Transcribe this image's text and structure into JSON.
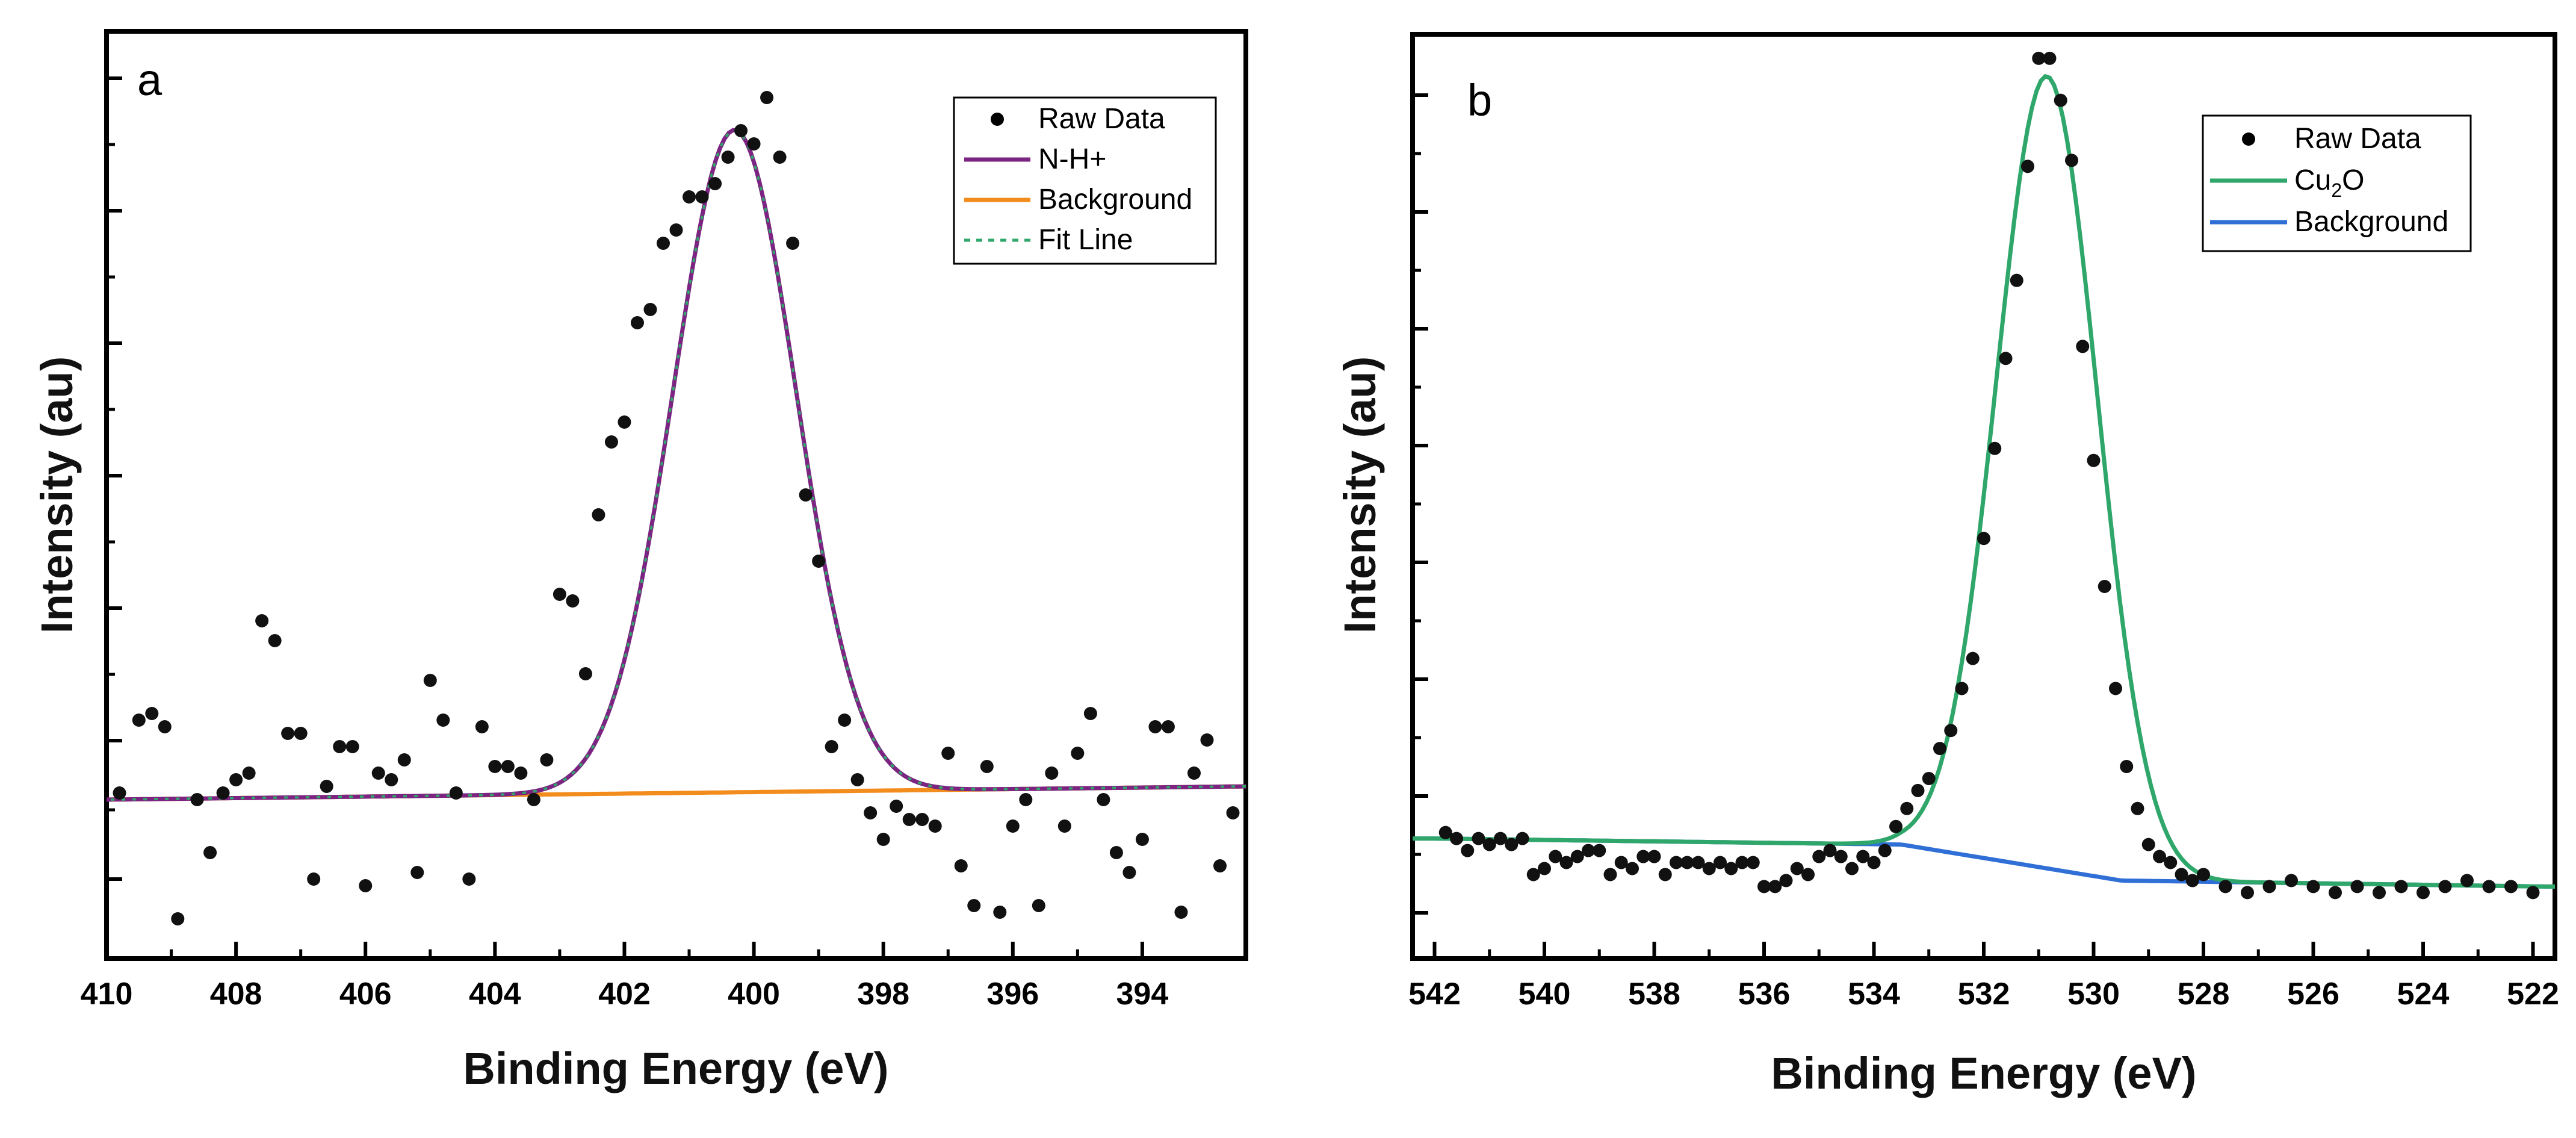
{
  "chart_data": [
    {
      "type": "scatter",
      "panel": "a",
      "xlabel": "Binding Energy (eV)",
      "ylabel": "Intensity (au)",
      "xlim": [
        410,
        392.4
      ],
      "ylim": [
        0,
        1.4
      ],
      "xticks": [
        410,
        408,
        406,
        404,
        402,
        400,
        398,
        396,
        394
      ],
      "x_reversed": true,
      "y_tick_labels": false,
      "legend_position": "top-right",
      "legend": [
        {
          "label": "Raw Data",
          "style": "marker",
          "color": "#000000"
        },
        {
          "label": "N-H+",
          "style": "line",
          "color": "#7b2481"
        },
        {
          "label": "Background",
          "style": "line",
          "color": "#f28c1c"
        },
        {
          "label": "Fit Line",
          "style": "dashed",
          "color": "#2fa66a"
        }
      ],
      "background": {
        "x": [
          410,
          392.4
        ],
        "y": [
          0.24,
          0.26
        ]
      },
      "peak": {
        "center": 400.3,
        "height": 1.0,
        "sigma": 0.95
      },
      "raw_points": {
        "x": [
          409.8,
          409.5,
          409.3,
          409.1,
          408.9,
          408.6,
          408.4,
          408.2,
          408.0,
          407.8,
          407.6,
          407.4,
          407.2,
          407.0,
          406.8,
          406.6,
          406.4,
          406.2,
          406.0,
          405.8,
          405.6,
          405.4,
          405.2,
          405.0,
          404.8,
          404.6,
          404.4,
          404.2,
          404.0,
          403.8,
          403.6,
          403.4,
          403.2,
          403.0,
          402.8,
          402.6,
          402.4,
          402.2,
          402.0,
          401.8,
          401.6,
          401.4,
          401.2,
          401.0,
          400.8,
          400.6,
          400.4,
          400.2,
          400.0,
          399.8,
          399.6,
          399.4,
          399.2,
          399.0,
          398.8,
          398.6,
          398.4,
          398.2,
          398.0,
          397.8,
          397.6,
          397.4,
          397.2,
          397.0,
          396.8,
          396.6,
          396.4,
          396.2,
          396.0,
          395.8,
          395.6,
          395.4,
          395.2,
          395.0,
          394.8,
          394.6,
          394.4,
          394.2,
          394.0,
          393.8,
          393.6,
          393.4,
          393.2,
          393.0,
          392.8,
          392.6
        ],
        "y": [
          0.25,
          0.36,
          0.37,
          0.35,
          0.06,
          0.24,
          0.16,
          0.25,
          0.27,
          0.28,
          0.51,
          0.48,
          0.34,
          0.34,
          0.12,
          0.26,
          0.32,
          0.32,
          0.11,
          0.28,
          0.27,
          0.3,
          0.13,
          0.42,
          0.36,
          0.25,
          0.12,
          0.35,
          0.29,
          0.29,
          0.28,
          0.24,
          0.3,
          0.55,
          0.54,
          0.43,
          0.67,
          0.78,
          0.81,
          0.96,
          0.98,
          1.08,
          1.1,
          1.15,
          1.15,
          1.17,
          1.21,
          1.25,
          1.23,
          1.3,
          1.21,
          1.08,
          0.7,
          0.6,
          0.32,
          0.36,
          0.27,
          0.22,
          0.18,
          0.23,
          0.21,
          0.21,
          0.2,
          0.31,
          0.14,
          0.08,
          0.29,
          0.07,
          0.2,
          0.24,
          0.08,
          0.28,
          0.2,
          0.31,
          0.37,
          0.24,
          0.16,
          0.13,
          0.18,
          0.35,
          0.35,
          0.07,
          0.28,
          0.33,
          0.14,
          0.22
        ]
      }
    },
    {
      "type": "scatter",
      "panel": "b",
      "xlabel": "Binding Energy (eV)",
      "ylabel": "Intensity (au)",
      "xlim": [
        542.4,
        521.6
      ],
      "ylim": [
        0,
        1.54
      ],
      "xticks": [
        542,
        540,
        538,
        536,
        534,
        532,
        530,
        528,
        526,
        524,
        522
      ],
      "x_reversed": true,
      "y_tick_labels": false,
      "legend_position": "top-right",
      "legend": [
        {
          "label": "Raw Data",
          "style": "marker",
          "color": "#000000"
        },
        {
          "label": "Cu",
          "subscript": "2",
          "suffix": "O",
          "style": "line",
          "color": "#2fa66a"
        },
        {
          "label": "Background",
          "style": "line",
          "color": "#2f6fd6"
        }
      ],
      "background": {
        "x": [
          542,
          533.5,
          529.5,
          521.8
        ],
        "y": [
          0.2,
          0.19,
          0.13,
          0.12
        ]
      },
      "peak": {
        "center": 530.85,
        "height": 1.32,
        "sigma": 0.92
      },
      "raw_points": {
        "x": [
          541.8,
          541.6,
          541.4,
          541.2,
          541.0,
          540.8,
          540.6,
          540.4,
          540.2,
          540.0,
          539.8,
          539.6,
          539.4,
          539.2,
          539.0,
          538.8,
          538.6,
          538.4,
          538.2,
          538.0,
          537.8,
          537.6,
          537.4,
          537.2,
          537.0,
          536.8,
          536.6,
          536.4,
          536.2,
          536.0,
          535.8,
          535.6,
          535.4,
          535.2,
          535.0,
          534.8,
          534.6,
          534.4,
          534.2,
          534.0,
          533.8,
          533.6,
          533.4,
          533.2,
          533.0,
          532.8,
          532.6,
          532.4,
          532.2,
          532.0,
          531.8,
          531.6,
          531.4,
          531.2,
          531.0,
          530.8,
          530.6,
          530.4,
          530.2,
          530.0,
          529.8,
          529.6,
          529.4,
          529.2,
          529.0,
          528.8,
          528.6,
          528.4,
          528.2,
          528.0,
          527.6,
          527.2,
          526.8,
          526.4,
          526.0,
          525.6,
          525.2,
          524.8,
          524.4,
          524.0,
          523.6,
          523.2,
          522.8,
          522.4,
          522.0
        ],
        "y": [
          0.21,
          0.2,
          0.18,
          0.2,
          0.19,
          0.2,
          0.19,
          0.2,
          0.14,
          0.15,
          0.17,
          0.16,
          0.17,
          0.18,
          0.18,
          0.14,
          0.16,
          0.15,
          0.17,
          0.17,
          0.14,
          0.16,
          0.16,
          0.16,
          0.15,
          0.16,
          0.15,
          0.16,
          0.16,
          0.12,
          0.12,
          0.13,
          0.15,
          0.14,
          0.17,
          0.18,
          0.17,
          0.15,
          0.17,
          0.16,
          0.18,
          0.22,
          0.25,
          0.28,
          0.3,
          0.35,
          0.38,
          0.45,
          0.5,
          0.7,
          0.85,
          1.0,
          1.13,
          1.32,
          1.5,
          1.5,
          1.43,
          1.33,
          1.02,
          0.83,
          0.62,
          0.45,
          0.32,
          0.25,
          0.19,
          0.17,
          0.16,
          0.14,
          0.13,
          0.14,
          0.12,
          0.11,
          0.12,
          0.13,
          0.12,
          0.11,
          0.12,
          0.11,
          0.12,
          0.11,
          0.12,
          0.13,
          0.12,
          0.12,
          0.11
        ]
      }
    }
  ]
}
